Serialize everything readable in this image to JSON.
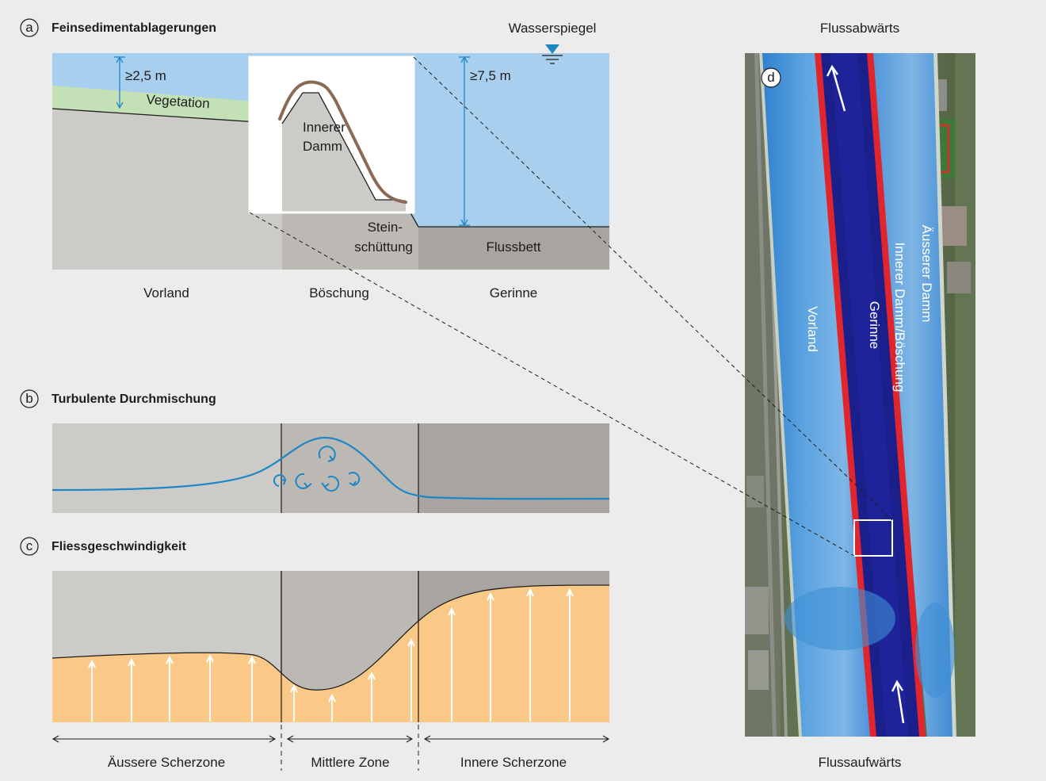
{
  "panel_a": {
    "letter": "a",
    "title": "Feinsedimentablagerungen",
    "water_surface": "Wasserspiegel",
    "depth_shallow": "≥2,5 m",
    "depth_deep": "≥7,5 m",
    "vegetation": "Vegetation",
    "inner_dam_line1": "Innerer",
    "inner_dam_line2": "Damm",
    "riprap_line1": "Stein-",
    "riprap_line2": "schüttung",
    "riverbed": "Flussbett",
    "zone_floodplain": "Vorland",
    "zone_slope": "Böschung",
    "zone_channel": "Gerinne"
  },
  "panel_b": {
    "letter": "b",
    "title": "Turbulente Durchmischung"
  },
  "panel_c": {
    "letter": "c",
    "title": "Fliessgeschwindigkeit",
    "zone_outer": "Äussere Scherzone",
    "zone_middle": "Mittlere Zone",
    "zone_inner": "Innere Scherzone"
  },
  "panel_d": {
    "letter": "d",
    "downstream": "Flussabwärts",
    "upstream": "Flussaufwärts",
    "label_floodplain": "Vorland",
    "label_channel": "Gerinne",
    "label_inner_dam": "Innerer Damm/Böschung",
    "label_outer_dam": "Äusserer Damm"
  },
  "colors": {
    "water": "#a9cfee",
    "ground_light": "#cdcbc7",
    "ground_mid": "#bcb9b4",
    "ground_dark": "#a8a49f",
    "vegetation": "#c4e0b6",
    "sediment": "#8a6a55",
    "turbulence": "#1f86c6",
    "velocity_fill": "#fbc987",
    "channel_deep": "#1b1f8c",
    "shear_red": "#e0262c",
    "floodplain_blue": "#3d8fd6"
  },
  "icons": [
    "water-level-icon",
    "eddy-icon",
    "flow-arrow-icon"
  ]
}
